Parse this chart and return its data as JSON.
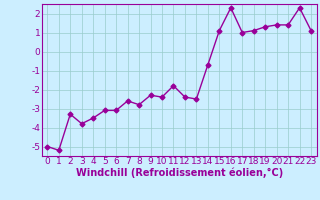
{
  "x": [
    0,
    1,
    2,
    3,
    4,
    5,
    6,
    7,
    8,
    9,
    10,
    11,
    12,
    13,
    14,
    15,
    16,
    17,
    18,
    19,
    20,
    21,
    22,
    23
  ],
  "y": [
    -5.0,
    -5.2,
    -3.3,
    -3.8,
    -3.5,
    -3.1,
    -3.1,
    -2.6,
    -2.8,
    -2.3,
    -2.4,
    -1.8,
    -2.4,
    -2.5,
    -0.7,
    1.1,
    2.3,
    1.0,
    1.1,
    1.3,
    1.4,
    1.4,
    2.3,
    1.1
  ],
  "line_color": "#990099",
  "marker": "D",
  "marker_size": 2.5,
  "background_color": "#cceeff",
  "grid_color": "#99cccc",
  "xlabel": "Windchill (Refroidissement éolien,°C)",
  "ylim": [
    -5.5,
    2.5
  ],
  "xlim": [
    -0.5,
    23.5
  ],
  "yticks": [
    -5,
    -4,
    -3,
    -2,
    -1,
    0,
    1,
    2
  ],
  "xticks": [
    0,
    1,
    2,
    3,
    4,
    5,
    6,
    7,
    8,
    9,
    10,
    11,
    12,
    13,
    14,
    15,
    16,
    17,
    18,
    19,
    20,
    21,
    22,
    23
  ],
  "xlabel_fontsize": 7,
  "tick_fontsize": 6.5,
  "line_width": 1.0
}
